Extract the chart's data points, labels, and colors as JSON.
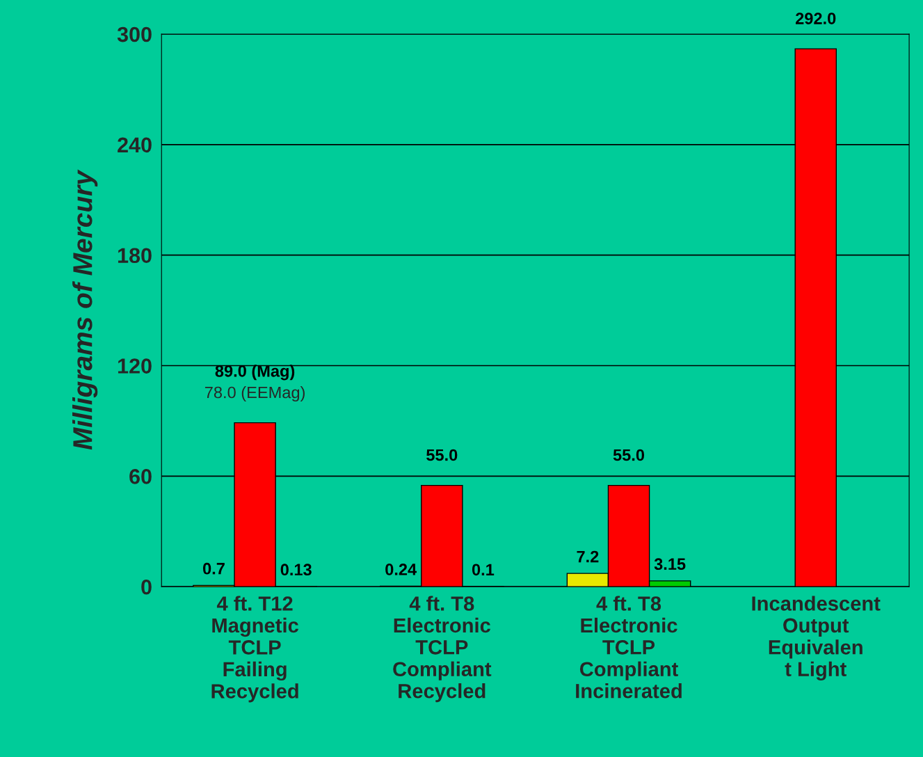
{
  "chart_data": {
    "type": "bar",
    "ylabel": "Milligrams of Mercury",
    "categories": [
      "4 ft. T12\nMagnetic\nTCLP\nFailing\nRecycled",
      "4 ft. T8\nElectronic\nTCLP\nCompliant\nRecycled",
      "4 ft. T8\nElectronic\nTCLP\nCompliant\nIncinerated",
      "Incandescent\nOutput\nEquivalen\nt Light"
    ],
    "series": [
      {
        "color": "#e8e800",
        "values": [
          0.7,
          0.24,
          7.2,
          null
        ],
        "value_labels": [
          "0.7",
          "0.24",
          "7.2",
          null
        ]
      },
      {
        "color": "#ff0000",
        "values": [
          89.0,
          55.0,
          55.0,
          292.0
        ],
        "value_labels": [
          "89.0 (Mag)",
          "55.0",
          "55.0",
          "292.0"
        ]
      },
      {
        "color": "#00cc00",
        "values": [
          0.13,
          0.1,
          3.15,
          null
        ],
        "value_labels": [
          "0.13",
          "0.1",
          "3.15",
          null
        ]
      }
    ],
    "annotations": [
      "78.0 (EEMag)"
    ],
    "ylim": [
      0,
      300
    ],
    "yticks": [
      0,
      60,
      120,
      180,
      240,
      300
    ],
    "grid": "y",
    "legend": false
  }
}
